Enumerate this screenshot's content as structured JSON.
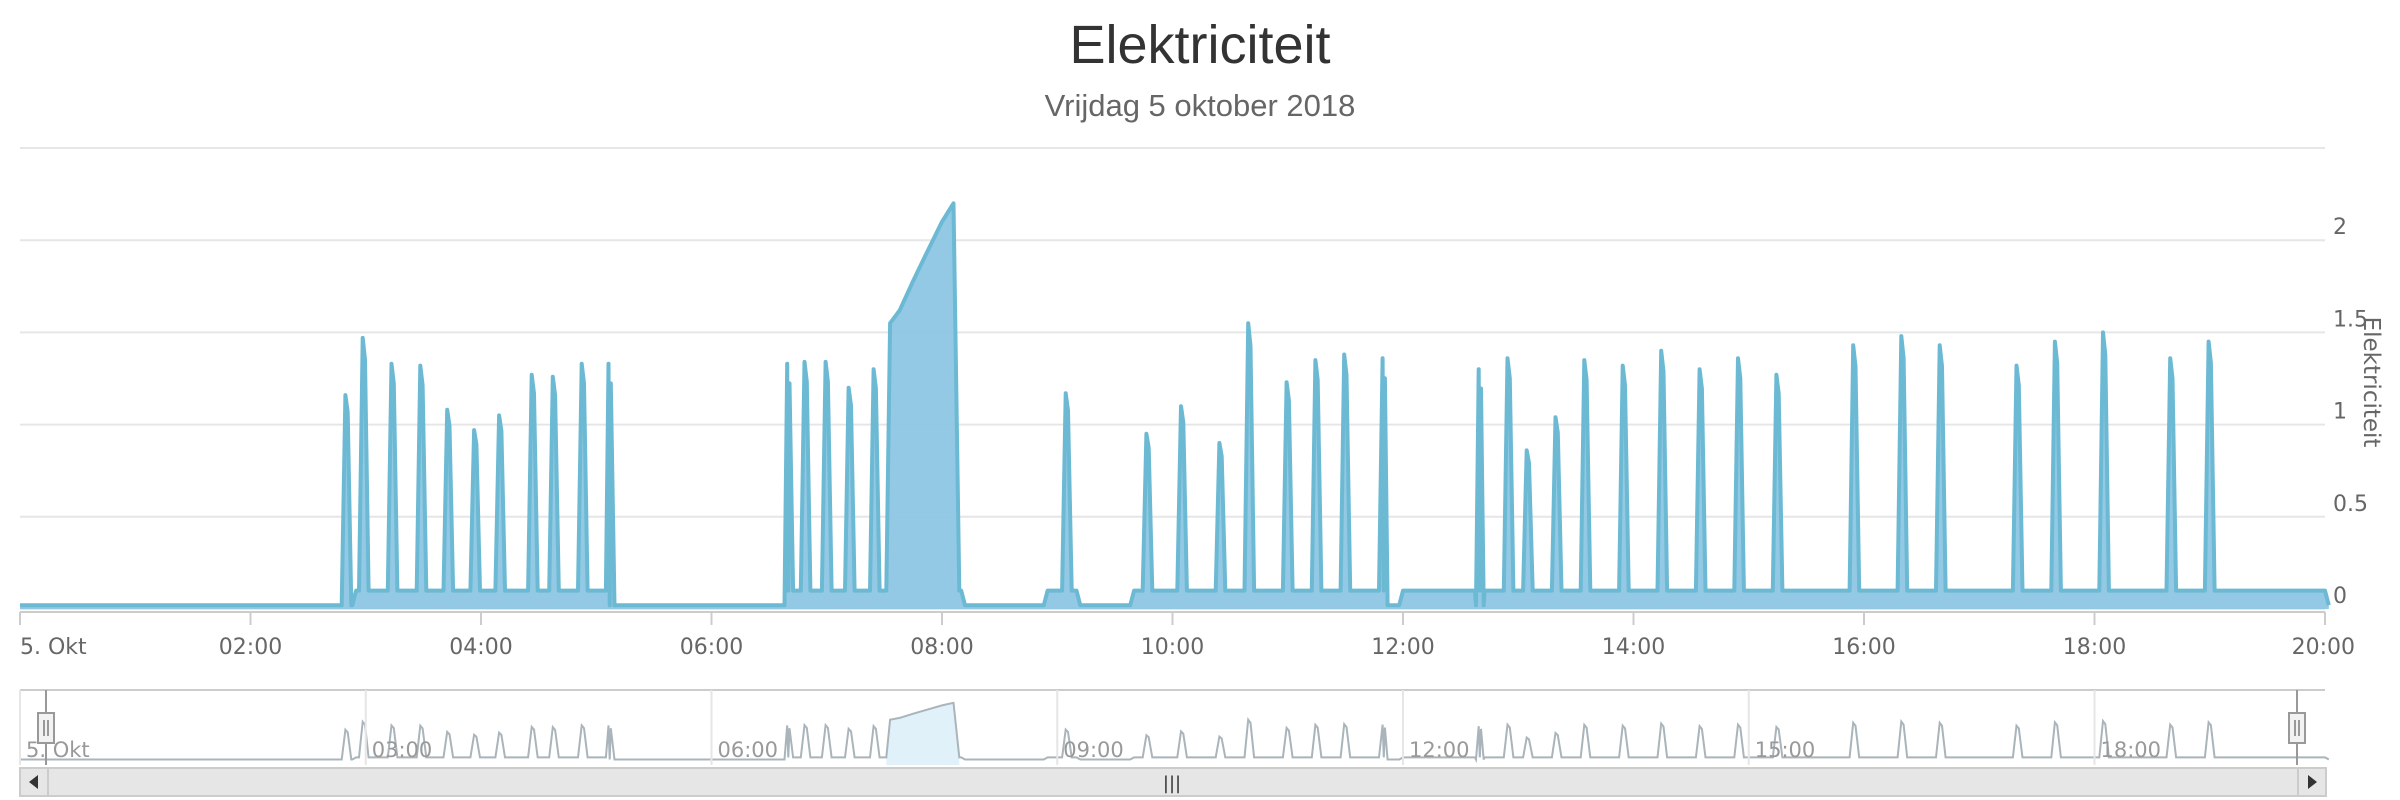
{
  "title": "Elektriciteit",
  "subtitle": "Vrijdag 5 oktober 2018",
  "colors": {
    "series_line": "#6cb9d4",
    "series_fill": "#8dc6e3",
    "grid": "#e6e6e6",
    "navigator_line": "#a9b4bb",
    "navigator_fill": "#e1f1fa"
  },
  "chart_data": {
    "type": "area",
    "title": "Elektriciteit",
    "subtitle": "Vrijdag 5 oktober 2018",
    "ylabel": "Elektriciteit",
    "y_axis_position": "right",
    "ylim": [
      0,
      2.5
    ],
    "yticks": [
      0,
      0.5,
      1,
      1.5,
      2
    ],
    "xlim": [
      "00:00",
      "20:00"
    ],
    "xtick_labels": [
      "5. Okt",
      "02:00",
      "04:00",
      "06:00",
      "08:00",
      "10:00",
      "12:00",
      "14:00",
      "16:00",
      "18:00",
      "20:00"
    ],
    "grid": true,
    "baseline": 0.02,
    "idle_segments": [
      {
        "from": "02:55",
        "to": "05:05",
        "value": 0.1
      },
      {
        "from": "06:40",
        "to": "08:10",
        "value": 0.1
      },
      {
        "from": "08:55",
        "to": "09:10",
        "value": 0.1
      },
      {
        "from": "09:40",
        "to": "11:50",
        "value": 0.1
      },
      {
        "from": "12:00",
        "to": "12:40",
        "value": 0.1
      },
      {
        "from": "12:40",
        "to": "20:00",
        "value": 0.1
      }
    ],
    "spikes": [
      {
        "x": "02:50",
        "y": 1.16
      },
      {
        "x": "02:59",
        "y": 1.47
      },
      {
        "x": "03:14",
        "y": 1.33
      },
      {
        "x": "03:29",
        "y": 1.32
      },
      {
        "x": "03:43",
        "y": 1.08
      },
      {
        "x": "03:57",
        "y": 0.97
      },
      {
        "x": "04:10",
        "y": 1.05
      },
      {
        "x": "04:27",
        "y": 1.27
      },
      {
        "x": "04:38",
        "y": 1.26
      },
      {
        "x": "04:53",
        "y": 1.33
      },
      {
        "x": "05:07",
        "y": 1.33
      },
      {
        "x": "06:40",
        "y": 1.33
      },
      {
        "x": "06:49",
        "y": 1.34
      },
      {
        "x": "07:00",
        "y": 1.34
      },
      {
        "x": "07:12",
        "y": 1.2
      },
      {
        "x": "07:25",
        "y": 1.3
      },
      {
        "x": "09:05",
        "y": 1.17
      },
      {
        "x": "09:47",
        "y": 0.95
      },
      {
        "x": "10:05",
        "y": 1.1
      },
      {
        "x": "10:25",
        "y": 0.9
      },
      {
        "x": "10:40",
        "y": 1.55
      },
      {
        "x": "11:00",
        "y": 1.23
      },
      {
        "x": "11:15",
        "y": 1.35
      },
      {
        "x": "11:30",
        "y": 1.38
      },
      {
        "x": "11:50",
        "y": 1.36
      },
      {
        "x": "12:40",
        "y": 1.3
      },
      {
        "x": "12:55",
        "y": 1.36
      },
      {
        "x": "13:05",
        "y": 0.86
      },
      {
        "x": "13:20",
        "y": 1.04
      },
      {
        "x": "13:35",
        "y": 1.35
      },
      {
        "x": "13:55",
        "y": 1.32
      },
      {
        "x": "14:15",
        "y": 1.4
      },
      {
        "x": "14:35",
        "y": 1.3
      },
      {
        "x": "14:55",
        "y": 1.36
      },
      {
        "x": "15:15",
        "y": 1.27
      },
      {
        "x": "15:55",
        "y": 1.43
      },
      {
        "x": "16:20",
        "y": 1.48
      },
      {
        "x": "16:40",
        "y": 1.43
      },
      {
        "x": "17:20",
        "y": 1.32
      },
      {
        "x": "17:40",
        "y": 1.45
      },
      {
        "x": "18:05",
        "y": 1.5
      },
      {
        "x": "18:40",
        "y": 1.36
      },
      {
        "x": "19:00",
        "y": 1.45
      }
    ],
    "plateau": [
      {
        "x": "07:31",
        "y": 0.1
      },
      {
        "x": "07:33",
        "y": 1.55
      },
      {
        "x": "07:38",
        "y": 1.62
      },
      {
        "x": "07:45",
        "y": 1.78
      },
      {
        "x": "07:52",
        "y": 1.93
      },
      {
        "x": "08:00",
        "y": 2.1
      },
      {
        "x": "08:06",
        "y": 2.2
      },
      {
        "x": "08:09",
        "y": 0.1
      }
    ]
  },
  "navigator": {
    "labels": [
      "5. Okt",
      "03:00",
      "06:00",
      "09:00",
      "12:00",
      "15:00",
      "18:00"
    ],
    "handle_glyph": "|||",
    "left_arrow": "◂",
    "right_arrow": "▸"
  }
}
